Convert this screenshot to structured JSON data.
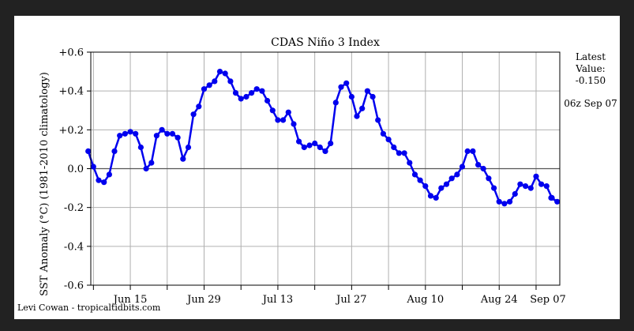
{
  "chart_data": {
    "type": "line",
    "title": "CDAS Niño 3 Index",
    "ylabel": "SST Anomaly (°C) (1981-2010 climatology)",
    "xlabel": "",
    "ylim": [
      -0.6,
      0.6
    ],
    "xlim": [
      -7.5,
      81.5
    ],
    "y_ticks": [
      {
        "value": 0.6,
        "label": "+0.6"
      },
      {
        "value": 0.4,
        "label": "+0.4"
      },
      {
        "value": 0.2,
        "label": "+0.2"
      },
      {
        "value": 0.0,
        "label": "0.0"
      },
      {
        "value": -0.2,
        "label": "-0.2"
      },
      {
        "value": -0.4,
        "label": "-0.4"
      },
      {
        "value": -0.6,
        "label": "-0.6"
      }
    ],
    "x_ticks": [
      {
        "value": 0,
        "label": "Jun 15"
      },
      {
        "value": 14,
        "label": "Jun 29"
      },
      {
        "value": 28,
        "label": "Jul 13"
      },
      {
        "value": 42,
        "label": "Jul 27"
      },
      {
        "value": 56,
        "label": "Aug 10"
      },
      {
        "value": 70,
        "label": "Aug 24"
      },
      {
        "value": 84,
        "label": "Sep 07"
      }
    ],
    "x_minor_ticks": [
      -7,
      7,
      21,
      35,
      49,
      63,
      77
    ],
    "grid": true,
    "zero_line": true,
    "series_color": "#0000ee",
    "series": [
      {
        "x": [
          -8,
          -7,
          -6,
          -5,
          -4,
          -3,
          -2,
          -1,
          0,
          1,
          2,
          3,
          4,
          5,
          6,
          7,
          8,
          9,
          10,
          11,
          12,
          13,
          14,
          15,
          16,
          17,
          18,
          19,
          20,
          21,
          22,
          23,
          24,
          25,
          26,
          27,
          28,
          29,
          30,
          31,
          32,
          33,
          34,
          35,
          36,
          37,
          38,
          39,
          40,
          41,
          42,
          43,
          44,
          45,
          46,
          47,
          48,
          49,
          50,
          51,
          52,
          53,
          54,
          55,
          56,
          57,
          58,
          59,
          60,
          61,
          62,
          63,
          64,
          65,
          66,
          67,
          68,
          69,
          70,
          71,
          72,
          73,
          74,
          75,
          76,
          77,
          78,
          79,
          80,
          81
        ],
        "values": [
          0.09,
          0.01,
          -0.06,
          -0.07,
          -0.03,
          0.09,
          0.17,
          0.18,
          0.19,
          0.18,
          0.11,
          0.0,
          0.03,
          0.17,
          0.2,
          0.18,
          0.18,
          0.16,
          0.05,
          0.11,
          0.28,
          0.32,
          0.41,
          0.43,
          0.45,
          0.5,
          0.49,
          0.45,
          0.39,
          0.36,
          0.37,
          0.39,
          0.41,
          0.4,
          0.35,
          0.3,
          0.25,
          0.25,
          0.29,
          0.23,
          0.14,
          0.11,
          0.12,
          0.13,
          0.11,
          0.09,
          0.13,
          0.34,
          0.42,
          0.44,
          0.37,
          0.27,
          0.31,
          0.4,
          0.37,
          0.25,
          0.18,
          0.15,
          0.11,
          0.08,
          0.08,
          0.03,
          -0.03,
          -0.06,
          -0.09,
          -0.14,
          -0.15,
          -0.1,
          -0.08,
          -0.05,
          -0.03,
          0.01,
          0.09,
          0.09,
          0.02,
          0.0,
          -0.05,
          -0.1,
          -0.17,
          -0.18,
          -0.17,
          -0.13,
          -0.08,
          -0.09,
          -0.1,
          -0.04,
          -0.08,
          -0.09,
          -0.15,
          -0.17
        ]
      }
    ],
    "end_point": {
      "x": 84,
      "value": -0.15
    }
  },
  "latest": {
    "heading": "Latest",
    "label": "Value:",
    "value": "-0.150",
    "time": "06z Sep 07"
  },
  "credit": "Levi Cowan - tropicaltidbits.com"
}
